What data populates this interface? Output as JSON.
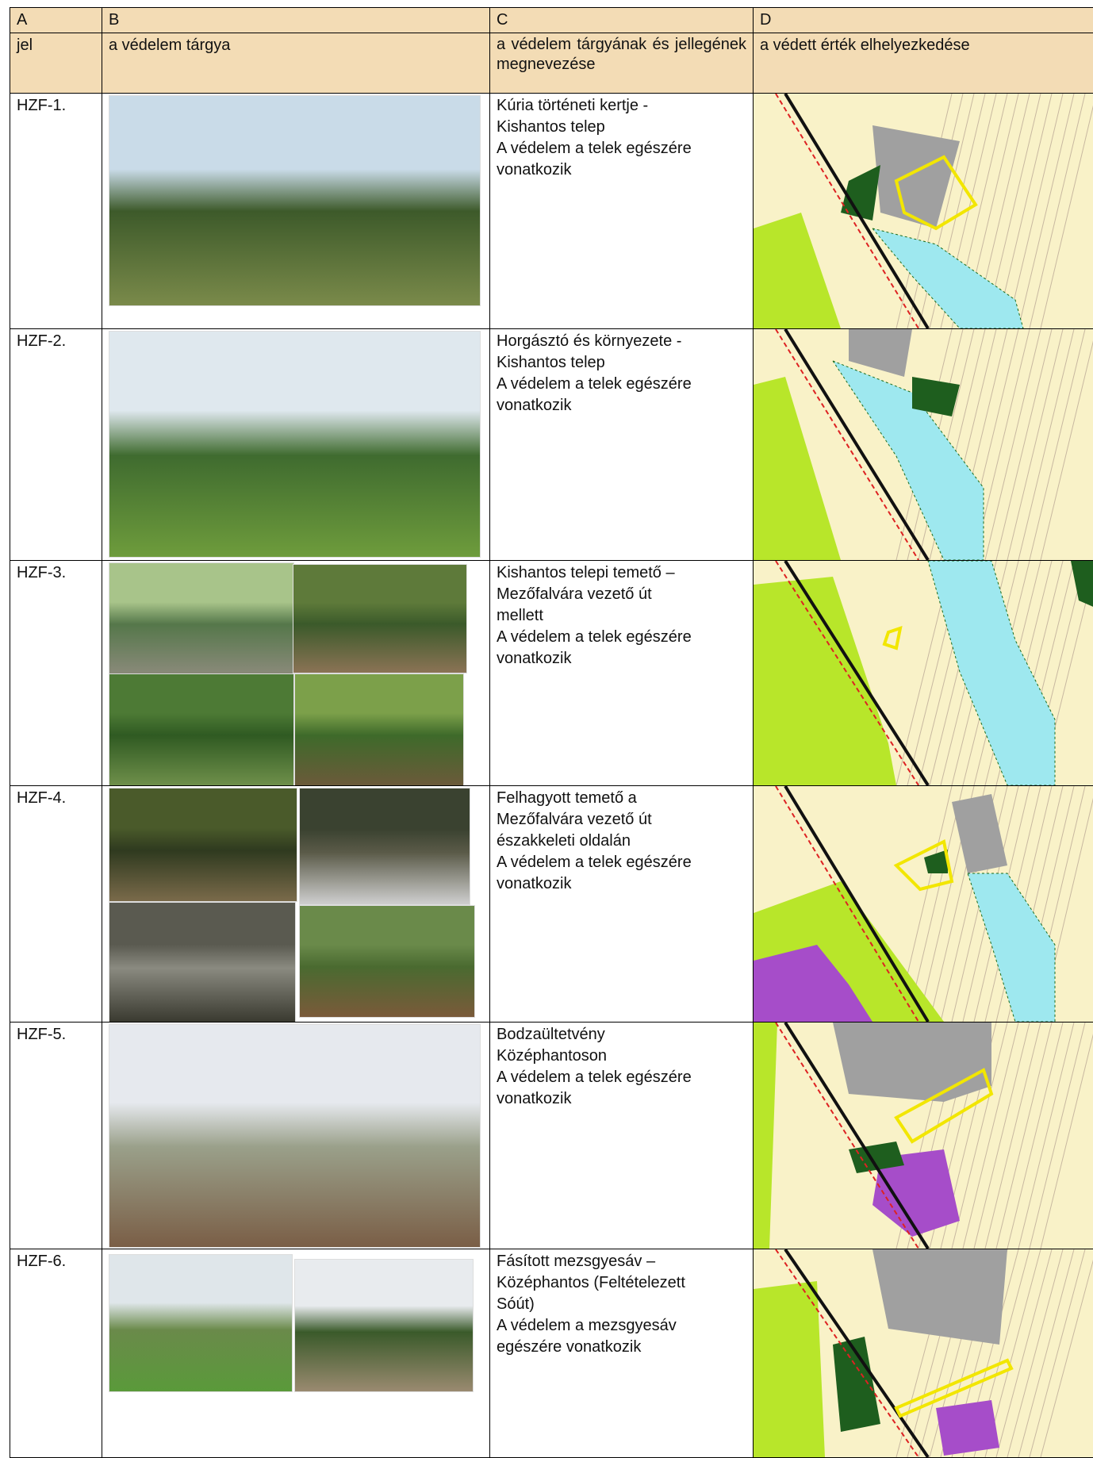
{
  "header": {
    "columns": [
      "A",
      "B",
      "C",
      "D"
    ],
    "labels": [
      "jel",
      "a védelem tárgya",
      "a védelem tárgyának és jellegének megnevezése",
      "a védett érték elhelyezkedése"
    ]
  },
  "table": {
    "rows": [
      {
        "id": "HZF-1.",
        "description": [
          "Kúria történeti kertje -",
          "Kishantos telep",
          "A védelem a telek egészére",
          "vonatkozik"
        ]
      },
      {
        "id": "HZF-2.",
        "description": [
          "Horgásztó és környezete -",
          "Kishantos telep",
          "A védelem a telek egészére",
          "vonatkozik"
        ]
      },
      {
        "id": "HZF-3.",
        "description": [
          "Kishantos telepi temető –",
          "Mezőfalvára vezető út",
          "mellett",
          "A védelem a telek egészére",
          "vonatkozik"
        ]
      },
      {
        "id": "HZF-4.",
        "description": [
          "Felhagyott temető a",
          "Mezőfalvára vezető út",
          "északkeleti oldalán",
          "A védelem a telek egészére",
          "vonatkozik"
        ]
      },
      {
        "id": "HZF-5.",
        "description": [
          "Bodzaültetvény",
          "Középhantoson",
          "A védelem a telek egészére",
          "vonatkozik"
        ]
      },
      {
        "id": "HZF-6.",
        "description": [
          "Fásított mezsgyesáv –",
          "Középhantos (Feltételezett",
          "Sóút)",
          "A védelem a mezsgyesáv",
          "egészére vonatkozik"
        ]
      }
    ]
  }
}
